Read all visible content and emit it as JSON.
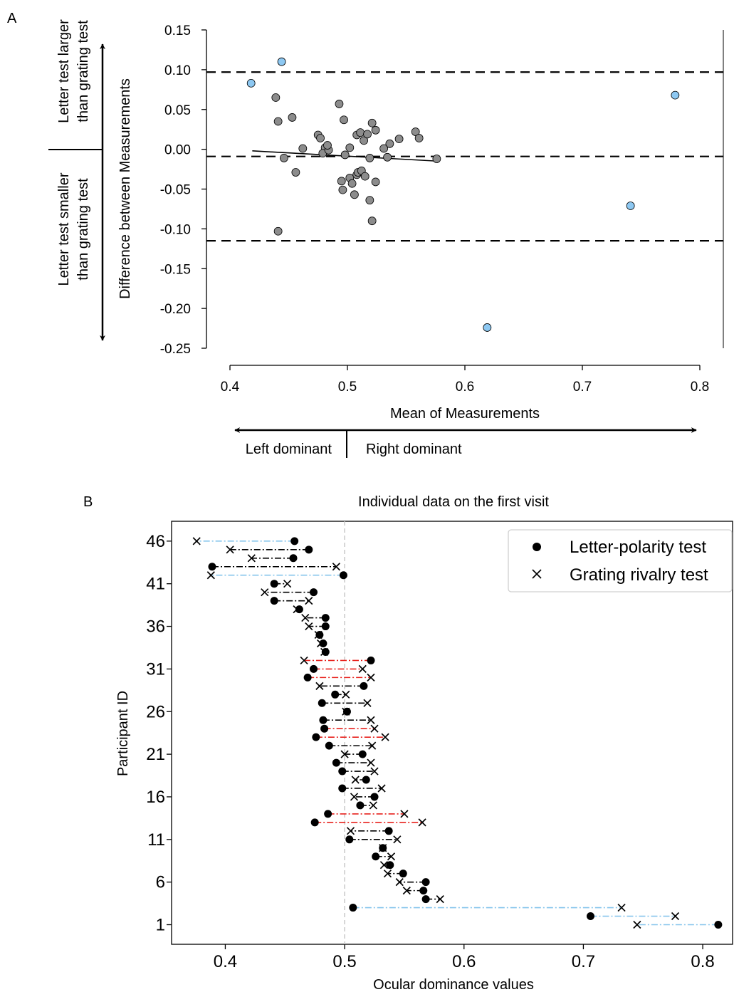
{
  "panels": {
    "a": "A",
    "b": "B"
  },
  "chart_data": [
    {
      "type": "scatter",
      "title": "",
      "xlabel": "Mean of Measurements",
      "ylabel": "Difference between Measurements",
      "xlim": [
        0.39,
        0.81
      ],
      "ylim": [
        -0.25,
        0.15
      ],
      "xticks": [
        "0.4",
        "0.5",
        "0.6",
        "0.7",
        "0.8"
      ],
      "yticks": [
        "0.15",
        "0.10",
        "0.05",
        "0.00",
        "-0.05",
        "-0.10",
        "-0.15",
        "-0.20",
        "-0.25"
      ],
      "side_labels": {
        "upper_line1": "Letter test larger",
        "upper_line2": "than grating test",
        "lower_line1": "Letter test smaller",
        "lower_line2": "than grating test"
      },
      "direction_labels": {
        "left": "Left dominant",
        "right": "Right dominant"
      },
      "reference_lines": {
        "upper_loa": 0.097,
        "mean_difference": -0.009,
        "lower_loa": -0.115
      },
      "regression_line": [
        [
          0.419,
          -0.002
        ],
        [
          0.578,
          -0.015
        ]
      ],
      "colors": {
        "gray_points": "#8c8c8c",
        "blue_points": "#8dc8f2",
        "lines": "#000000"
      },
      "series": [
        {
          "values_xy": [
            [
              0.439,
              0.065
            ],
            [
              0.441,
              0.035
            ],
            [
              0.446,
              -0.011
            ],
            [
              0.453,
              0.04
            ],
            [
              0.456,
              -0.029
            ],
            [
              0.441,
              -0.103
            ],
            [
              0.462,
              0.001
            ],
            [
              0.475,
              0.018
            ],
            [
              0.477,
              0.014
            ],
            [
              0.481,
              0.002
            ],
            [
              0.479,
              -0.005
            ],
            [
              0.484,
              -0.001
            ],
            [
              0.483,
              0.005
            ],
            [
              0.493,
              0.057
            ],
            [
              0.497,
              0.037
            ],
            [
              0.498,
              -0.007
            ],
            [
              0.502,
              0.002
            ],
            [
              0.508,
              0.018
            ],
            [
              0.511,
              0.021
            ],
            [
              0.514,
              0.011
            ],
            [
              0.517,
              0.019
            ],
            [
              0.521,
              0.033
            ],
            [
              0.524,
              0.024
            ],
            [
              0.519,
              -0.011
            ],
            [
              0.495,
              -0.04
            ],
            [
              0.496,
              -0.051
            ],
            [
              0.502,
              -0.036
            ],
            [
              0.504,
              -0.043
            ],
            [
              0.506,
              -0.057
            ],
            [
              0.508,
              -0.032
            ],
            [
              0.509,
              -0.029
            ],
            [
              0.512,
              -0.027
            ],
            [
              0.515,
              -0.034
            ],
            [
              0.519,
              -0.064
            ],
            [
              0.521,
              -0.09
            ],
            [
              0.524,
              -0.041
            ],
            [
              0.531,
              0.001
            ],
            [
              0.534,
              -0.01
            ],
            [
              0.536,
              0.007
            ],
            [
              0.544,
              0.013
            ],
            [
              0.558,
              0.022
            ],
            [
              0.561,
              0.014
            ],
            [
              0.576,
              -0.012
            ]
          ]
        },
        {
          "values_xy": [
            [
              0.418,
              0.083
            ],
            [
              0.444,
              0.11
            ],
            [
              0.619,
              -0.224
            ],
            [
              0.741,
              -0.071
            ],
            [
              0.779,
              0.068
            ]
          ]
        }
      ]
    },
    {
      "type": "dot-plot",
      "title": "Individual data on the first visit",
      "xlabel": "Ocular dominance values",
      "ylabel": "Participant ID",
      "xlim": [
        0.355,
        0.825
      ],
      "ylim": [
        0,
        47
      ],
      "xticks": [
        "0.4",
        "0.5",
        "0.6",
        "0.7",
        "0.8"
      ],
      "yticks": [
        "1",
        "6",
        "11",
        "16",
        "21",
        "26",
        "31",
        "36",
        "41",
        "46"
      ],
      "reference_line_x": 0.5,
      "legend": {
        "position": "top-right",
        "entries": [
          "Letter-polarity test",
          "Grating rivalry test"
        ]
      },
      "colors": {
        "black": "#000000",
        "red": "#e8231e",
        "blue": "#86c5ec",
        "reference": "#c8c8c8"
      },
      "participants": [
        {
          "id": 46,
          "letter": 0.458,
          "grating": 0.376,
          "color": "blue"
        },
        {
          "id": 45,
          "letter": 0.47,
          "grating": 0.404,
          "color": "black"
        },
        {
          "id": 44,
          "letter": 0.457,
          "grating": 0.422,
          "color": "black"
        },
        {
          "id": 43,
          "letter": 0.389,
          "grating": 0.493,
          "color": "black"
        },
        {
          "id": 42,
          "letter": 0.499,
          "grating": 0.388,
          "color": "blue"
        },
        {
          "id": 41,
          "letter": 0.441,
          "grating": 0.452,
          "color": "black"
        },
        {
          "id": 40,
          "letter": 0.474,
          "grating": 0.433,
          "color": "black"
        },
        {
          "id": 39,
          "letter": 0.441,
          "grating": 0.47,
          "color": "black"
        },
        {
          "id": 38,
          "letter": 0.462,
          "grating": 0.46,
          "color": "black"
        },
        {
          "id": 37,
          "letter": 0.484,
          "grating": 0.467,
          "color": "black"
        },
        {
          "id": 36,
          "letter": 0.484,
          "grating": 0.47,
          "color": "black"
        },
        {
          "id": 35,
          "letter": 0.479,
          "grating": 0.478,
          "color": "black"
        },
        {
          "id": 34,
          "letter": 0.482,
          "grating": 0.48,
          "color": "black"
        },
        {
          "id": 33,
          "letter": 0.484,
          "grating": 0.483,
          "color": "black"
        },
        {
          "id": 32,
          "letter": 0.522,
          "grating": 0.466,
          "color": "red"
        },
        {
          "id": 31,
          "letter": 0.474,
          "grating": 0.515,
          "color": "red"
        },
        {
          "id": 30,
          "letter": 0.469,
          "grating": 0.522,
          "color": "red"
        },
        {
          "id": 29,
          "letter": 0.516,
          "grating": 0.479,
          "color": "black"
        },
        {
          "id": 28,
          "letter": 0.492,
          "grating": 0.501,
          "color": "black"
        },
        {
          "id": 27,
          "letter": 0.481,
          "grating": 0.519,
          "color": "black"
        },
        {
          "id": 26,
          "letter": 0.502,
          "grating": 0.501,
          "color": "black"
        },
        {
          "id": 25,
          "letter": 0.482,
          "grating": 0.522,
          "color": "black"
        },
        {
          "id": 24,
          "letter": 0.483,
          "grating": 0.525,
          "color": "red"
        },
        {
          "id": 23,
          "letter": 0.476,
          "grating": 0.534,
          "color": "red"
        },
        {
          "id": 22,
          "letter": 0.487,
          "grating": 0.523,
          "color": "black"
        },
        {
          "id": 21,
          "letter": 0.515,
          "grating": 0.5,
          "color": "black"
        },
        {
          "id": 20,
          "letter": 0.493,
          "grating": 0.522,
          "color": "black"
        },
        {
          "id": 19,
          "letter": 0.498,
          "grating": 0.525,
          "color": "black"
        },
        {
          "id": 18,
          "letter": 0.518,
          "grating": 0.509,
          "color": "black"
        },
        {
          "id": 17,
          "letter": 0.498,
          "grating": 0.531,
          "color": "black"
        },
        {
          "id": 16,
          "letter": 0.525,
          "grating": 0.508,
          "color": "black"
        },
        {
          "id": 15,
          "letter": 0.513,
          "grating": 0.524,
          "color": "black"
        },
        {
          "id": 14,
          "letter": 0.486,
          "grating": 0.55,
          "color": "red"
        },
        {
          "id": 13,
          "letter": 0.475,
          "grating": 0.565,
          "color": "red"
        },
        {
          "id": 12,
          "letter": 0.537,
          "grating": 0.505,
          "color": "black"
        },
        {
          "id": 11,
          "letter": 0.504,
          "grating": 0.544,
          "color": "black"
        },
        {
          "id": 10,
          "letter": 0.532,
          "grating": 0.532,
          "color": "black"
        },
        {
          "id": 9,
          "letter": 0.526,
          "grating": 0.539,
          "color": "black"
        },
        {
          "id": 8,
          "letter": 0.538,
          "grating": 0.533,
          "color": "black"
        },
        {
          "id": 7,
          "letter": 0.549,
          "grating": 0.536,
          "color": "black"
        },
        {
          "id": 6,
          "letter": 0.568,
          "grating": 0.546,
          "color": "black"
        },
        {
          "id": 5,
          "letter": 0.566,
          "grating": 0.552,
          "color": "black"
        },
        {
          "id": 4,
          "letter": 0.568,
          "grating": 0.58,
          "color": "black"
        },
        {
          "id": 3,
          "letter": 0.507,
          "grating": 0.732,
          "color": "blue"
        },
        {
          "id": 2,
          "letter": 0.706,
          "grating": 0.777,
          "color": "blue"
        },
        {
          "id": 1,
          "letter": 0.813,
          "grating": 0.745,
          "color": "blue"
        }
      ]
    }
  ]
}
